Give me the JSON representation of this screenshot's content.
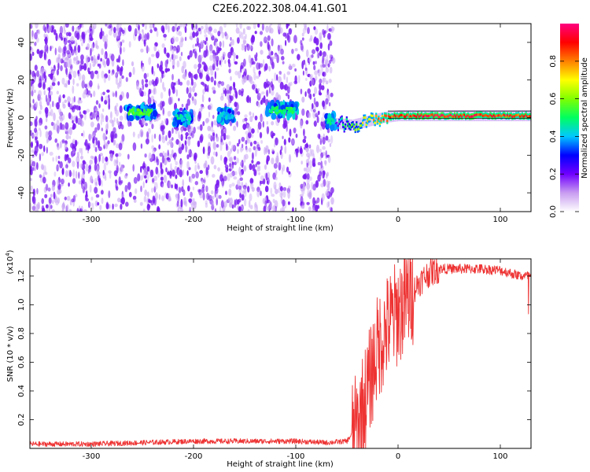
{
  "figure": {
    "title": "C2E6.2022.308.04.41.G01"
  },
  "chart_data": [
    {
      "type": "heatmap",
      "xlabel": "Height of straight line (km)",
      "ylabel": "Frequency (Hz)",
      "xlim": [
        -360,
        130
      ],
      "ylim": [
        -50,
        50
      ],
      "x_ticks": [
        -300,
        -200,
        -100,
        0,
        100
      ],
      "y_ticks": [
        -40,
        -20,
        0,
        20,
        40
      ],
      "grid": false,
      "colorbar": {
        "label": "Normalized spectral amplitude",
        "range": [
          0,
          1
        ],
        "ticks": [
          0.0,
          0.2,
          0.4,
          0.6,
          0.8
        ],
        "colormap": [
          "#ffffff",
          "#c89cf0",
          "#7000ff",
          "#0000ff",
          "#00c8ff",
          "#00ff60",
          "#80ff00",
          "#ffff00",
          "#ff8000",
          "#ff0000",
          "#ff0080"
        ]
      },
      "noise_region_km": [
        -360,
        -63
      ],
      "noise_color": "#7a1cf0",
      "clusters": [
        {
          "x": -252,
          "y": 3,
          "width_km": 30,
          "amp": 0.55
        },
        {
          "x": -210,
          "y": 0,
          "width_km": 18,
          "amp": 0.45
        },
        {
          "x": -168,
          "y": 1,
          "width_km": 16,
          "amp": 0.4
        },
        {
          "x": -113,
          "y": 4,
          "width_km": 30,
          "amp": 0.5
        },
        {
          "x": -66,
          "y": -2,
          "width_km": 8,
          "amp": 0.45
        }
      ],
      "ridge": [
        {
          "x": -63,
          "y": -3,
          "amp": 0.4
        },
        {
          "x": -45,
          "y": -4,
          "amp": 0.6
        },
        {
          "x": -30,
          "y": -2,
          "amp": 0.75
        },
        {
          "x": -15,
          "y": 0,
          "amp": 0.85
        },
        {
          "x": 0,
          "y": 1,
          "amp": 0.9
        },
        {
          "x": 30,
          "y": 1,
          "amp": 0.95
        },
        {
          "x": 70,
          "y": 1,
          "amp": 0.95
        },
        {
          "x": 130,
          "y": 1,
          "amp": 0.9
        }
      ]
    },
    {
      "type": "line",
      "xlabel": "Height of straight line (km)",
      "ylabel": "SNR (10 * v/v)",
      "y_multiplier": "(x10^4)",
      "xlim": [
        -360,
        130
      ],
      "ylim": [
        0,
        1.32
      ],
      "x_ticks": [
        -300,
        -200,
        -100,
        0,
        100
      ],
      "y_ticks": [
        0.2,
        0.4,
        0.6,
        0.8,
        1.0,
        1.2
      ],
      "grid": false,
      "series": [
        {
          "color": "#ee3333",
          "x": [
            -360,
            -300,
            -250,
            -200,
            -150,
            -100,
            -70,
            -50,
            -40,
            -30,
            -20,
            -10,
            0,
            10,
            20,
            30,
            40,
            60,
            80,
            100,
            120,
            130
          ],
          "y": [
            0.03,
            0.03,
            0.04,
            0.05,
            0.05,
            0.05,
            0.04,
            0.05,
            0.15,
            0.4,
            0.7,
            0.85,
            0.95,
            1.05,
            1.15,
            1.22,
            1.25,
            1.25,
            1.25,
            1.24,
            1.2,
            1.2
          ]
        }
      ]
    }
  ]
}
